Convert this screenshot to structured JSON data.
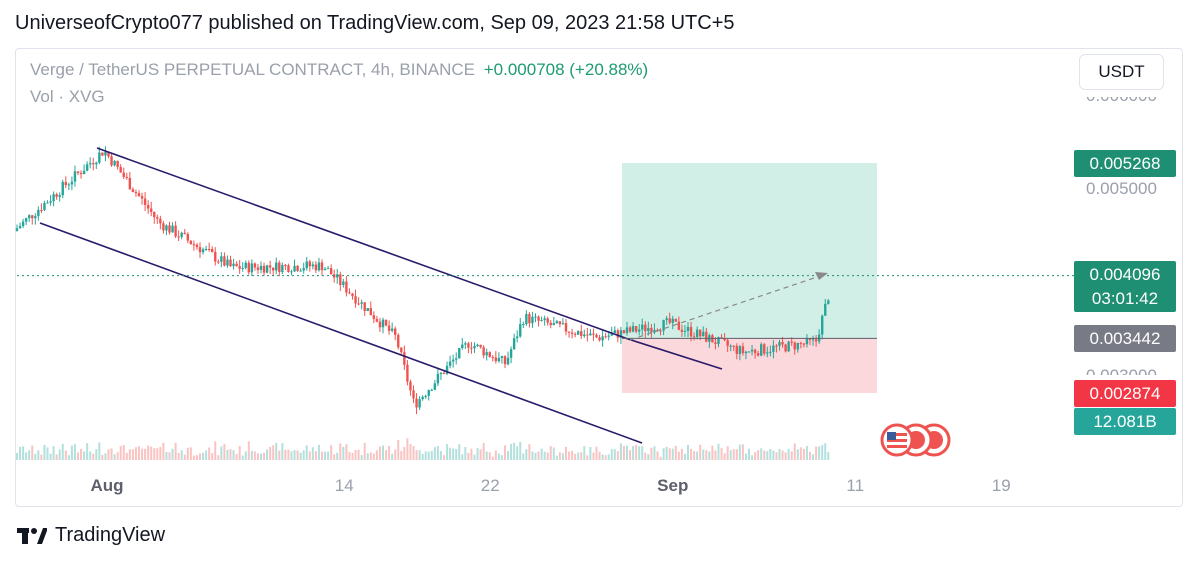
{
  "header": {
    "published_text": "UniverseofCrypto077 published on TradingView.com, Sep 09, 2023 21:58 UTC+5"
  },
  "symbol": {
    "description": "Verge / TetherUS PERPETUAL CONTRACT, 4h, BINANCE",
    "change": "+0.000708 (+20.88%)",
    "volume_label": "Vol · XVG",
    "currency": "USDT"
  },
  "price_labels": {
    "target": "0.005268",
    "current": "0.004096",
    "countdown": "03:01:42",
    "entry": "0.003442",
    "stop": "0.002874",
    "volume": "12.081B"
  },
  "axis_prices": {
    "top_clipped": "0.006000",
    "mid": "0.005000",
    "low_clipped": "0.003000"
  },
  "x_ticks": [
    "Aug",
    "14",
    "22",
    "Sep",
    "11",
    "19"
  ],
  "footer": {
    "brand": "TradingView"
  },
  "colors": {
    "up": "#26a69a",
    "down": "#ef5350",
    "channel": "#2a1b6b",
    "profit_zone": "#cfeee6",
    "loss_zone": "#fad6d9",
    "current_price": "#1e8f73",
    "entry_price": "#787b86",
    "stop_price": "#f23645"
  },
  "chart_data": {
    "type": "candlestick",
    "title": "Verge / TetherUS PERPETUAL CONTRACT, 4h, BINANCE",
    "interval": "4h",
    "x_ticks": [
      "Aug",
      "14",
      "22",
      "Sep",
      "11",
      "19"
    ],
    "price_unit": "USDT",
    "current_price": 0.004096,
    "change": 0.000708,
    "change_pct": 20.88,
    "position": {
      "entry": 0.003442,
      "target": 0.005268,
      "stop": 0.002874
    },
    "axis_ticks": [
      0.005,
      0.006,
      0.003
    ],
    "last_volume": "12.081B",
    "key_points": [
      {
        "date": "Jul 27",
        "price": 0.00455
      },
      {
        "date": "Aug 1",
        "price": 0.0054
      },
      {
        "date": "Aug 4",
        "price": 0.00465
      },
      {
        "date": "Aug 8",
        "price": 0.00418
      },
      {
        "date": "Aug 13",
        "price": 0.0042
      },
      {
        "date": "Aug 17",
        "price": 0.00345
      },
      {
        "date": "Aug 18",
        "price": 0.00275
      },
      {
        "date": "Aug 21",
        "price": 0.0034
      },
      {
        "date": "Aug 23",
        "price": 0.00318
      },
      {
        "date": "Aug 24",
        "price": 0.00366
      },
      {
        "date": "Aug 28",
        "price": 0.00345
      },
      {
        "date": "Sep 1",
        "price": 0.0036
      },
      {
        "date": "Sep 5",
        "price": 0.0033
      },
      {
        "date": "Sep 9",
        "price": 0.0034
      },
      {
        "date": "Sep 10",
        "price": 0.0041
      }
    ]
  }
}
